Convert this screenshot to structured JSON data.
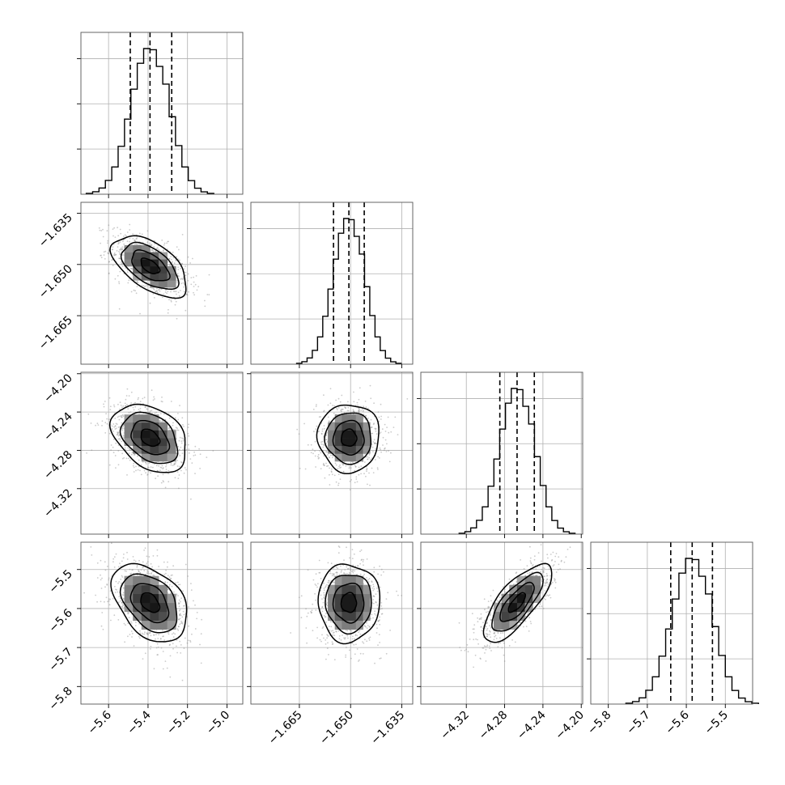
{
  "chart_data": {
    "type": "corner",
    "parameters": [
      {
        "name": "",
        "mean": -5.39,
        "std": 0.095,
        "quantiles": [
          -5.49,
          -5.39,
          -5.28
        ],
        "range": [
          -5.74,
          -4.92
        ],
        "ticks": [
          -5.6,
          -5.4,
          -5.2,
          -5.0
        ],
        "tick_labels": [
          "−5.6",
          "−5.4",
          "−5.2",
          "−5.0"
        ]
      },
      {
        "name": "",
        "mean": -1.6505,
        "std": 0.0045,
        "quantiles": [
          -1.655,
          -1.6505,
          -1.646
        ],
        "range": [
          -1.6792,
          -1.6318
        ],
        "ticks": [
          -1.665,
          -1.65,
          -1.635
        ],
        "tick_labels": [
          "−1.665",
          "−1.650",
          "−1.635"
        ]
      },
      {
        "name": "",
        "mean": -4.267,
        "std": 0.0178,
        "quantiles": [
          -4.285,
          -4.267,
          -4.249
        ],
        "range": [
          -4.3675,
          -4.1985
        ],
        "ticks": [
          -4.32,
          -4.28,
          -4.24,
          -4.2
        ],
        "tick_labels": [
          "−4.32",
          "−4.28",
          "−4.24",
          "−4.20"
        ]
      },
      {
        "name": "",
        "mean": -5.585,
        "std": 0.05,
        "quantiles": [
          -5.64,
          -5.585,
          -5.533
        ],
        "range": [
          -5.845,
          -5.43
        ],
        "ticks": [
          -5.8,
          -5.7,
          -5.6,
          -5.5
        ],
        "tick_labels": [
          "−5.8",
          "−5.7",
          "−5.6",
          "−5.5"
        ]
      }
    ],
    "correlations": [
      [
        1.0,
        -0.55,
        -0.35,
        -0.4
      ],
      [
        -0.55,
        1.0,
        0.0,
        0.0
      ],
      [
        -0.35,
        0.0,
        1.0,
        0.75
      ],
      [
        -0.4,
        0.0,
        0.75,
        1.0
      ]
    ],
    "histogram_bins": 20,
    "contour_levels_sigma": [
      0.5,
      1.0,
      1.5,
      2.0
    ],
    "quantile_lines": "dashed",
    "grid": true,
    "legend": "none",
    "colors": {
      "histogram": "#000000",
      "points": "#8c8c8c",
      "contours": "#000000",
      "grid": "#b0b0b0"
    }
  }
}
